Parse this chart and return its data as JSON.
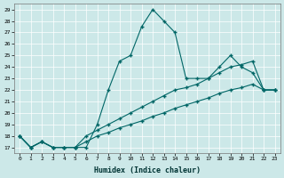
{
  "xlabel": "Humidex (Indice chaleur)",
  "background_color": "#cce8e8",
  "grid_color": "#b0d0d0",
  "line_color": "#006666",
  "xlim": [
    -0.5,
    23.5
  ],
  "ylim": [
    16.5,
    29.5
  ],
  "xticks": [
    0,
    1,
    2,
    3,
    4,
    5,
    6,
    7,
    8,
    9,
    10,
    11,
    12,
    13,
    14,
    15,
    16,
    17,
    18,
    19,
    20,
    21,
    22,
    23
  ],
  "yticks": [
    17,
    18,
    19,
    20,
    21,
    22,
    23,
    24,
    25,
    26,
    27,
    28,
    29
  ],
  "series": [
    [
      18,
      17,
      17.5,
      17,
      17,
      17,
      17,
      19,
      22,
      24.5,
      25,
      27.5,
      29,
      28,
      27,
      23,
      23,
      23,
      24,
      25,
      24,
      23.5,
      22,
      22
    ],
    [
      18,
      17,
      17.5,
      17,
      17,
      17,
      17.5,
      18,
      18.3,
      18.7,
      19,
      19.3,
      19.7,
      20,
      20.4,
      20.7,
      21,
      21.3,
      21.7,
      22,
      22.2,
      22.5,
      22,
      22
    ],
    [
      18,
      17,
      17.5,
      17,
      17,
      17,
      18,
      18.5,
      19,
      19.5,
      20,
      20.5,
      21,
      21.5,
      22,
      22.2,
      22.5,
      23,
      23.5,
      24,
      24.2,
      24.5,
      22,
      22
    ]
  ]
}
